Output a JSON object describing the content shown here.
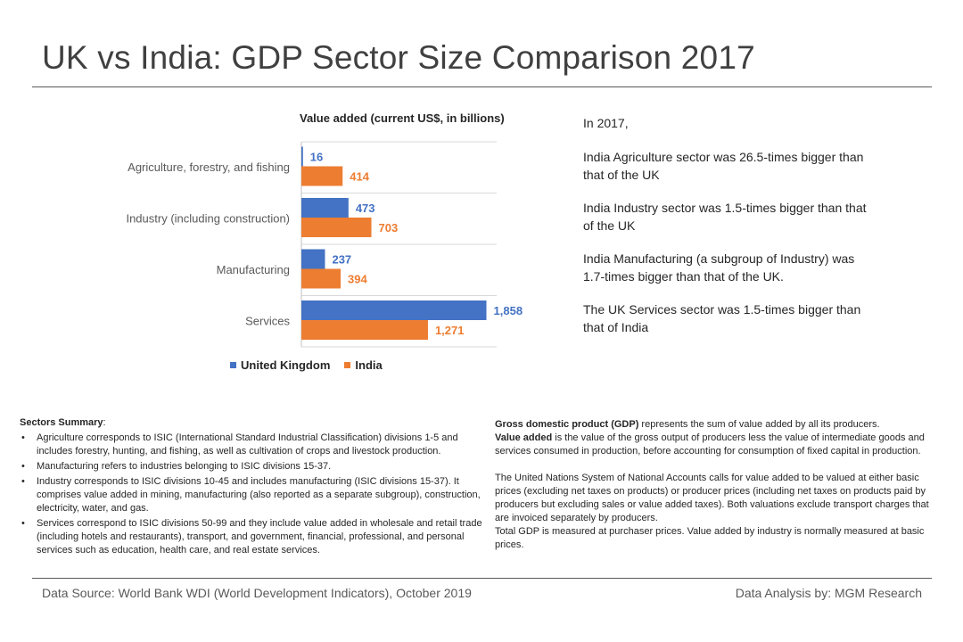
{
  "page": {
    "title": "UK vs India: GDP Sector Size Comparison 2017"
  },
  "chart_data": {
    "type": "bar",
    "orientation": "horizontal",
    "title": "Value added (current US$, in billions)",
    "categories": [
      "Agriculture, forestry, and fishing",
      "Industry (including construction)",
      "Manufacturing",
      "Services"
    ],
    "series": [
      {
        "name": "United Kingdom",
        "color": "#4472c4",
        "values": [
          16,
          473,
          237,
          1858
        ],
        "labels": [
          "16",
          "473",
          "237",
          "1,858"
        ]
      },
      {
        "name": "India",
        "color": "#ed7d31",
        "values": [
          414,
          703,
          394,
          1271
        ],
        "labels": [
          "414",
          "703",
          "394",
          "1,271"
        ]
      }
    ],
    "xlim": [
      0,
      2000
    ],
    "legend_position": "bottom",
    "gridlines": "horizontal-separators"
  },
  "insights": {
    "intro": "In 2017,",
    "items": [
      "India Agriculture sector was 26.5-times bigger than that of the UK",
      "India Industry sector was 1.5-times bigger than that of the UK",
      "India Manufacturing (a subgroup of Industry) was 1.7-times bigger than that of the UK.",
      "The UK Services sector was 1.5-times bigger than that of India"
    ]
  },
  "summary": {
    "heading": "Sectors Summary",
    "colon": ":",
    "items": [
      "Agriculture corresponds to ISIC (International Standard Industrial Classification) divisions 1-5 and includes forestry, hunting, and fishing, as well as cultivation of crops and livestock production.",
      "Manufacturing refers to industries belonging to ISIC divisions 15-37.",
      "Industry corresponds to ISIC divisions 10-45 and includes manufacturing (ISIC divisions 15-37). It comprises value added in mining, manufacturing (also reported as a separate subgroup), construction, electricity, water,  and gas.",
      "Services correspond to ISIC divisions 50-99 and they include value added in wholesale and retail trade (including hotels and restaurants), transport, and government,  financial, professional, and personal services such as education, health care, and real estate services."
    ]
  },
  "definitions": {
    "gdp_term": "Gross domestic product (GDP)",
    "gdp_text": " represents the sum of value added by all its producers.",
    "va_term": "Value added",
    "va_text": " is the value of the  gross output of producers less the value of intermediate goods and services consumed in production, before accounting for consumption of fixed capital in production.",
    "sna_text": "The United Nations System of National Accounts calls for value added to be valued at either basic prices (excluding net taxes on products) or producer prices (including net taxes on products paid by producers but excluding sales or value added taxes). Both valuations exclude transport charges that are invoiced separately by producers.",
    "total_text": "Total GDP  is measured at purchaser prices. Value added by industry is normally measured at basic prices."
  },
  "footer": {
    "source": "Data Source:  World Bank WDI (World Development Indicators), October 2019",
    "credit": "Data Analysis by: MGM Research"
  }
}
